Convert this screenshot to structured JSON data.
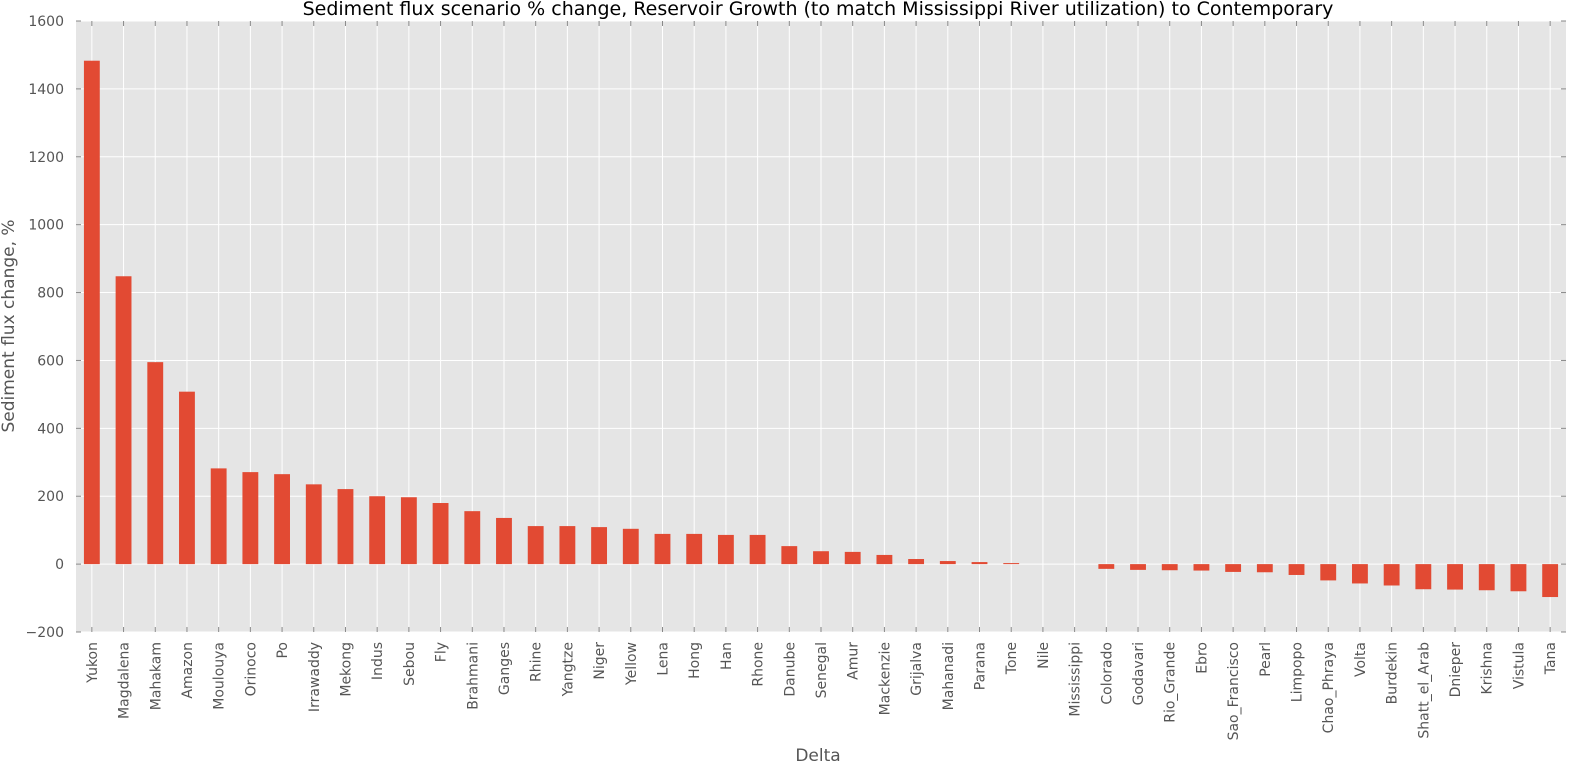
{
  "chart_data": {
    "type": "bar",
    "title": "Sediment flux scenario % change, Reservoir Growth (to match Mississippi River utilization) to Contemporary",
    "xlabel": "Delta",
    "ylabel": "Sediment flux change, %",
    "ylim": [
      -200,
      1600
    ],
    "yticks": [
      -200,
      0,
      200,
      400,
      600,
      800,
      1000,
      1200,
      1400,
      1600
    ],
    "ytick_labels": [
      "−200",
      "0",
      "200",
      "400",
      "600",
      "800",
      "1000",
      "1200",
      "1400",
      "1600"
    ],
    "grid": true,
    "legend": "none",
    "bar_color": "#e24a33",
    "plot_background": "#e5e5e5",
    "categories": [
      "Yukon",
      "Magdalena",
      "Mahakam",
      "Amazon",
      "Moulouya",
      "Orinoco",
      "Po",
      "Irrawaddy",
      "Mekong",
      "Indus",
      "Sebou",
      "Fly",
      "Brahmani",
      "Ganges",
      "Rhine",
      "Yangtze",
      "Niger",
      "Yellow",
      "Lena",
      "Hong",
      "Han",
      "Rhone",
      "Danube",
      "Senegal",
      "Amur",
      "Mackenzie",
      "Grijalva",
      "Mahanadi",
      "Parana",
      "Tone",
      "Nile",
      "Mississippi",
      "Colorado",
      "Godavari",
      "Rio_Grande",
      "Ebro",
      "Sao_Francisco",
      "Pearl",
      "Limpopo",
      "Chao_Phraya",
      "Volta",
      "Burdekin",
      "Shatt_el_Arab",
      "Dnieper",
      "Krishna",
      "Vistula",
      "Tana"
    ],
    "values": [
      1483,
      848,
      595,
      508,
      282,
      271,
      265,
      235,
      221,
      200,
      197,
      180,
      156,
      136,
      112,
      112,
      109,
      104,
      89,
      89,
      86,
      86,
      53,
      38,
      36,
      27,
      15,
      9,
      6,
      3,
      0,
      0,
      -14,
      -17,
      -18,
      -19,
      -23,
      -24,
      -32,
      -48,
      -57,
      -63,
      -74,
      -75,
      -77,
      -80,
      -97
    ]
  }
}
